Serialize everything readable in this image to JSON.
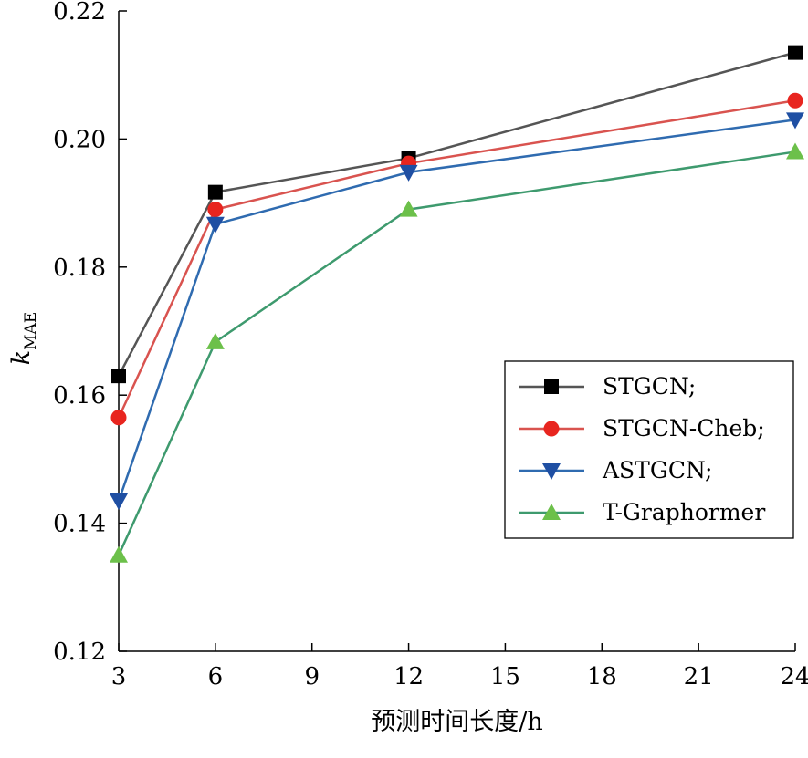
{
  "chart_data": {
    "type": "line",
    "xlabel": "预测时间长度/h",
    "ylabel": {
      "main": "k",
      "sub": "MAE"
    },
    "xlim": [
      3,
      24
    ],
    "ylim": [
      0.12,
      0.22
    ],
    "x_ticks": [
      "3",
      "6",
      "9",
      "12",
      "15",
      "18",
      "21",
      "24"
    ],
    "y_ticks": [
      "0.12",
      "0.14",
      "0.16",
      "0.18",
      "0.20",
      "0.22"
    ],
    "grid": false,
    "legend_position": "right",
    "x": [
      3,
      6,
      12,
      24
    ],
    "series": [
      {
        "name": "STGCN;",
        "color": "#555555",
        "marker_color": "#000000",
        "marker": "square",
        "values": [
          0.163,
          0.1917,
          0.197,
          0.2135
        ]
      },
      {
        "name": "STGCN-Cheb;",
        "color": "#d9534f",
        "marker_color": "#e8251f",
        "marker": "circle",
        "values": [
          0.1565,
          0.189,
          0.1962,
          0.206
        ]
      },
      {
        "name": "ASTGCN;",
        "color": "#2f6bb0",
        "marker_color": "#1f4fa3",
        "marker": "triangle-down",
        "values": [
          0.1435,
          0.1867,
          0.1948,
          0.203
        ]
      },
      {
        "name": "T-Graphormer",
        "color": "#3e9a6e",
        "marker_color": "#6cc04a",
        "marker": "triangle-up",
        "values": [
          0.135,
          0.1683,
          0.189,
          0.198
        ]
      }
    ]
  }
}
